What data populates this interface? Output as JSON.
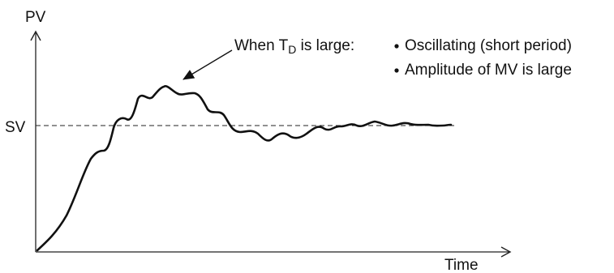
{
  "diagram": {
    "axis_y_label": "PV",
    "axis_x_label": "Time",
    "setpoint_label": "SV",
    "annotation": {
      "prefix": "When T",
      "subscript": "D",
      "suffix": " is large:",
      "bullets": [
        "Oscillating (short period)",
        "Amplitude of MV is large"
      ]
    },
    "colors": {
      "ink": "#111111",
      "background": "#ffffff"
    }
  }
}
